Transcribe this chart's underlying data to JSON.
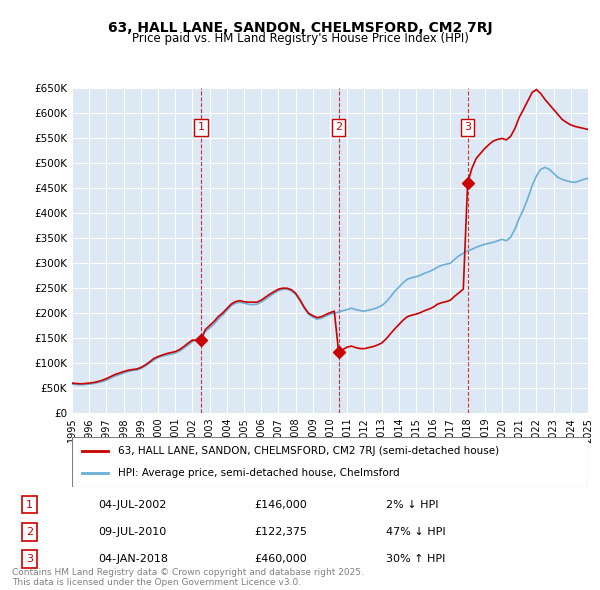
{
  "title": "63, HALL LANE, SANDON, CHELMSFORD, CM2 7RJ",
  "subtitle": "Price paid vs. HM Land Registry's House Price Index (HPI)",
  "background_color": "#dce9f5",
  "plot_bg_color": "#dce9f5",
  "ylim": [
    0,
    650000
  ],
  "yticks": [
    0,
    50000,
    100000,
    150000,
    200000,
    250000,
    300000,
    350000,
    400000,
    450000,
    500000,
    550000,
    600000,
    650000
  ],
  "ytick_labels": [
    "£0",
    "£50K",
    "£100K",
    "£150K",
    "£200K",
    "£250K",
    "£300K",
    "£350K",
    "£400K",
    "£450K",
    "£500K",
    "£550K",
    "£600K",
    "£650K"
  ],
  "hpi_color": "#6baed6",
  "price_color": "#cc0000",
  "vline_color": "#cc0000",
  "sales": [
    {
      "date_num": 2002.5,
      "price": 146000,
      "label": "1",
      "date_str": "04-JUL-2002",
      "pct": "2%",
      "dir": "↓"
    },
    {
      "date_num": 2010.5,
      "price": 122375,
      "label": "2",
      "date_str": "09-JUL-2010",
      "pct": "47%",
      "dir": "↓"
    },
    {
      "date_num": 2018.0,
      "price": 460000,
      "label": "3",
      "date_str": "04-JAN-2018",
      "pct": "30%",
      "dir": "↑"
    }
  ],
  "legend_line1": "63, HALL LANE, SANDON, CHELMSFORD, CM2 7RJ (semi-detached house)",
  "legend_line2": "HPI: Average price, semi-detached house, Chelmsford",
  "footnote": "Contains HM Land Registry data © Crown copyright and database right 2025.\nThis data is licensed under the Open Government Licence v3.0.",
  "hpi_data": {
    "x": [
      1995.0,
      1995.25,
      1995.5,
      1995.75,
      1996.0,
      1996.25,
      1996.5,
      1996.75,
      1997.0,
      1997.25,
      1997.5,
      1997.75,
      1998.0,
      1998.25,
      1998.5,
      1998.75,
      1999.0,
      1999.25,
      1999.5,
      1999.75,
      2000.0,
      2000.25,
      2000.5,
      2000.75,
      2001.0,
      2001.25,
      2001.5,
      2001.75,
      2002.0,
      2002.25,
      2002.5,
      2002.75,
      2003.0,
      2003.25,
      2003.5,
      2003.75,
      2004.0,
      2004.25,
      2004.5,
      2004.75,
      2005.0,
      2005.25,
      2005.5,
      2005.75,
      2006.0,
      2006.25,
      2006.5,
      2006.75,
      2007.0,
      2007.25,
      2007.5,
      2007.75,
      2008.0,
      2008.25,
      2008.5,
      2008.75,
      2009.0,
      2009.25,
      2009.5,
      2009.75,
      2010.0,
      2010.25,
      2010.5,
      2010.75,
      2011.0,
      2011.25,
      2011.5,
      2011.75,
      2012.0,
      2012.25,
      2012.5,
      2012.75,
      2013.0,
      2013.25,
      2013.5,
      2013.75,
      2014.0,
      2014.25,
      2014.5,
      2014.75,
      2015.0,
      2015.25,
      2015.5,
      2015.75,
      2016.0,
      2016.25,
      2016.5,
      2016.75,
      2017.0,
      2017.25,
      2017.5,
      2017.75,
      2018.0,
      2018.25,
      2018.5,
      2018.75,
      2019.0,
      2019.25,
      2019.5,
      2019.75,
      2020.0,
      2020.25,
      2020.5,
      2020.75,
      2021.0,
      2021.25,
      2021.5,
      2021.75,
      2022.0,
      2022.25,
      2022.5,
      2022.75,
      2023.0,
      2023.25,
      2023.5,
      2023.75,
      2024.0,
      2024.25,
      2024.5,
      2024.75,
      2025.0
    ],
    "y": [
      58000,
      57000,
      56500,
      57000,
      58000,
      59000,
      61000,
      63000,
      66000,
      70000,
      74000,
      77000,
      80000,
      83000,
      85000,
      86000,
      89000,
      94000,
      100000,
      106000,
      111000,
      114000,
      116000,
      118000,
      120000,
      124000,
      130000,
      136000,
      143000,
      148000,
      155000,
      163000,
      170000,
      178000,
      188000,
      196000,
      205000,
      215000,
      220000,
      222000,
      220000,
      218000,
      217000,
      218000,
      222000,
      228000,
      234000,
      240000,
      245000,
      248000,
      248000,
      245000,
      238000,
      225000,
      210000,
      198000,
      192000,
      188000,
      190000,
      194000,
      198000,
      200000,
      202000,
      205000,
      207000,
      210000,
      207000,
      205000,
      204000,
      206000,
      208000,
      211000,
      215000,
      222000,
      232000,
      243000,
      252000,
      261000,
      268000,
      271000,
      273000,
      276000,
      280000,
      283000,
      287000,
      292000,
      296000,
      298000,
      300000,
      308000,
      315000,
      320000,
      325000,
      328000,
      332000,
      335000,
      338000,
      340000,
      342000,
      345000,
      348000,
      345000,
      352000,
      368000,
      390000,
      408000,
      430000,
      455000,
      475000,
      488000,
      492000,
      488000,
      480000,
      472000,
      468000,
      465000,
      463000,
      462000,
      465000,
      468000,
      470000
    ]
  },
  "price_data": {
    "x": [
      1995.0,
      1995.25,
      1995.5,
      1995.75,
      1996.0,
      1996.25,
      1996.5,
      1996.75,
      1997.0,
      1997.25,
      1997.5,
      1997.75,
      1998.0,
      1998.25,
      1998.5,
      1998.75,
      1999.0,
      1999.25,
      1999.5,
      1999.75,
      2000.0,
      2000.25,
      2000.5,
      2000.75,
      2001.0,
      2001.25,
      2001.5,
      2001.75,
      2002.0,
      2002.25,
      2002.5,
      2002.75,
      2003.0,
      2003.25,
      2003.5,
      2003.75,
      2004.0,
      2004.25,
      2004.5,
      2004.75,
      2005.0,
      2005.25,
      2005.5,
      2005.75,
      2006.0,
      2006.25,
      2006.5,
      2006.75,
      2007.0,
      2007.25,
      2007.5,
      2007.75,
      2008.0,
      2008.25,
      2008.5,
      2008.75,
      2009.0,
      2009.25,
      2009.5,
      2009.75,
      2010.0,
      2010.25,
      2010.5,
      2010.75,
      2011.0,
      2011.25,
      2011.5,
      2011.75,
      2012.0,
      2012.25,
      2012.5,
      2012.75,
      2013.0,
      2013.25,
      2013.5,
      2013.75,
      2014.0,
      2014.25,
      2014.5,
      2014.75,
      2015.0,
      2015.25,
      2015.5,
      2015.75,
      2016.0,
      2016.25,
      2016.5,
      2016.75,
      2017.0,
      2017.25,
      2017.5,
      2017.75,
      2018.0,
      2018.25,
      2018.5,
      2018.75,
      2019.0,
      2019.25,
      2019.5,
      2019.75,
      2020.0,
      2020.25,
      2020.5,
      2020.75,
      2021.0,
      2021.25,
      2021.5,
      2021.75,
      2022.0,
      2022.25,
      2022.5,
      2022.75,
      2023.0,
      2023.25,
      2023.5,
      2023.75,
      2024.0,
      2024.25,
      2024.5,
      2024.75,
      2025.0
    ],
    "y": [
      60000,
      59000,
      58500,
      59000,
      60000,
      61000,
      63000,
      65500,
      69000,
      73000,
      77000,
      80000,
      83000,
      85500,
      87000,
      88000,
      91000,
      96000,
      102000,
      109000,
      113000,
      116000,
      119000,
      121000,
      123000,
      127000,
      133000,
      140000,
      146000,
      146000,
      146000,
      167000,
      175000,
      183000,
      193000,
      200000,
      209000,
      218000,
      223000,
      225000,
      223000,
      222000,
      222000,
      222000,
      226000,
      232000,
      238000,
      243000,
      248000,
      250000,
      250000,
      247000,
      240000,
      227000,
      212000,
      200000,
      195000,
      191000,
      193000,
      197000,
      201000,
      204000,
      122375,
      127000,
      132000,
      134000,
      131000,
      129000,
      129000,
      131000,
      133000,
      136000,
      140000,
      148000,
      158000,
      168000,
      177000,
      186000,
      193000,
      196000,
      198000,
      201000,
      205000,
      208000,
      212000,
      218000,
      221000,
      223000,
      226000,
      234000,
      241000,
      248000,
      460000,
      490000,
      510000,
      520000,
      530000,
      538000,
      545000,
      548000,
      550000,
      547000,
      554000,
      570000,
      592000,
      608000,
      625000,
      642000,
      648000,
      640000,
      628000,
      618000,
      608000,
      598000,
      588000,
      582000,
      577000,
      574000,
      572000,
      570000,
      568000
    ]
  }
}
